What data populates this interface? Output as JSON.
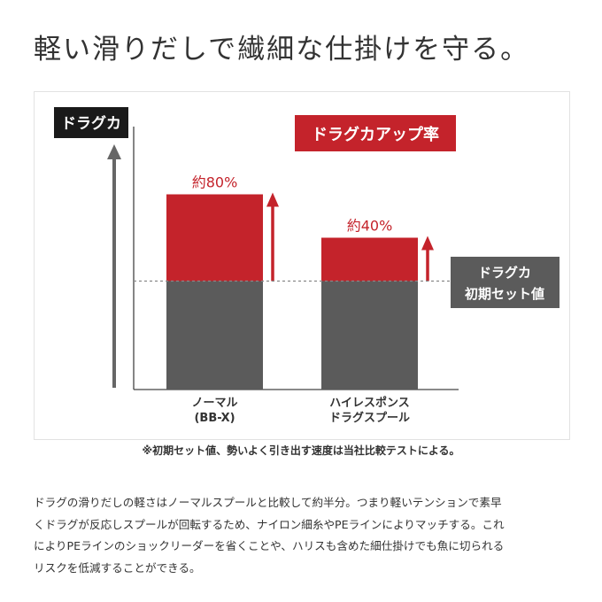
{
  "heading": "軽い滑りだしで繊細な仕掛けを守る。",
  "chart_data": {
    "type": "bar",
    "ylabel": "ドラグカ",
    "legend_title": "ドラグカアップ率",
    "baseline_label": [
      "ドラグカ",
      "初期セット値"
    ],
    "baseline_value": 100,
    "categories": [
      [
        "ノーマル",
        "(BB-X)"
      ],
      [
        "ハイレスポンス",
        "ドラグスプール"
      ]
    ],
    "values": [
      180,
      140
    ],
    "increase_labels": [
      "約80%",
      "約40%"
    ],
    "colors": {
      "base": "#5b5b5b",
      "increase": "#c4232b",
      "label": "#c4232b",
      "badge": "#1a1a1a",
      "axis": "#666666"
    }
  },
  "note": "※初期セット値、勢いよく引き出す速度は当社比較テストによる。",
  "body_lines": [
    "ドラグの滑りだしの軽さはノーマルスプールと比較して約半分。つまり軽いテンションで素早",
    "くドラグが反応しスプールが回転するため、ナイロン細糸やPEラインによりマッチする。これ",
    "によりPEラインのショックリーダーを省くことや、ハリスも含めた細仕掛けでも魚に切られる",
    "リスクを低減することができる。"
  ]
}
